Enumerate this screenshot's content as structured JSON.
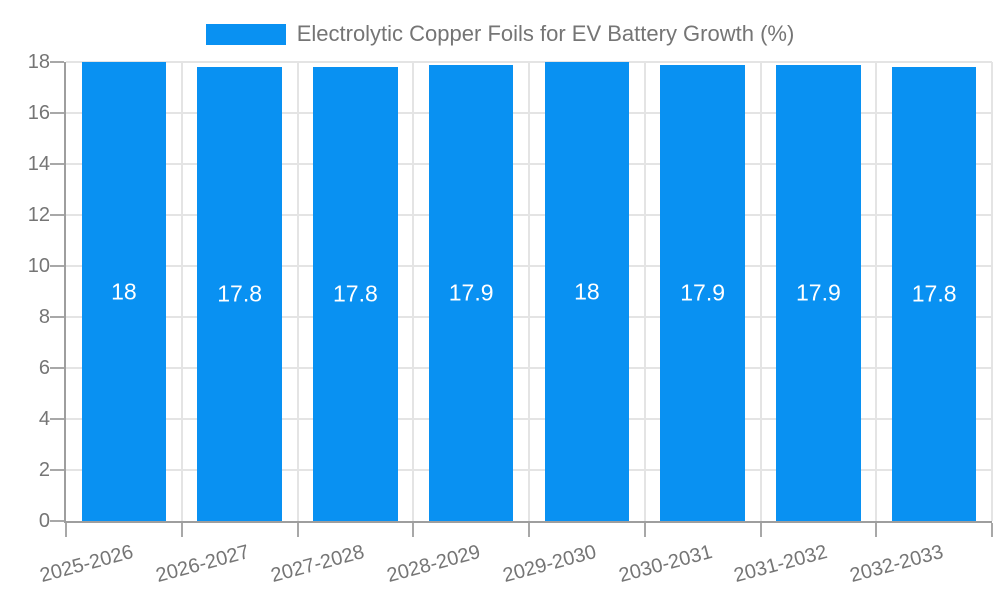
{
  "chart_data": {
    "type": "bar",
    "title": "Electrolytic Copper Foils for EV Battery Growth (%)",
    "legend_position": "top",
    "categories": [
      "2025-2026",
      "2026-2027",
      "2027-2028",
      "2028-2029",
      "2029-2030",
      "2030-2031",
      "2031-2032",
      "2032-2033"
    ],
    "series": [
      {
        "name": "Electrolytic Copper Foils for EV Battery Growth (%)",
        "values": [
          18,
          17.8,
          17.8,
          17.9,
          18,
          17.9,
          17.9,
          17.8
        ],
        "value_labels": [
          "18",
          "17.8",
          "17.8",
          "17.9",
          "18",
          "17.9",
          "17.9",
          "17.8"
        ]
      }
    ],
    "xlabel": "",
    "ylabel": "",
    "ylim": [
      0,
      18
    ],
    "yticks": [
      0,
      2,
      4,
      6,
      8,
      10,
      12,
      14,
      16,
      18
    ],
    "ytick_labels": [
      "0",
      "2",
      "4",
      "6",
      "8",
      "10",
      "12",
      "14",
      "16",
      "18"
    ],
    "x_tick_rotation_deg": -15,
    "grid": true,
    "colors": {
      "bar": "#0991f2",
      "bar_value_text": "#ffffff",
      "axis_text": "#757575",
      "legend_text": "#757575",
      "grid_line": "#e4e4e4",
      "axis_line": "#9e9e9e",
      "tick_mark": "#a8a8a8",
      "background": "#ffffff"
    }
  }
}
